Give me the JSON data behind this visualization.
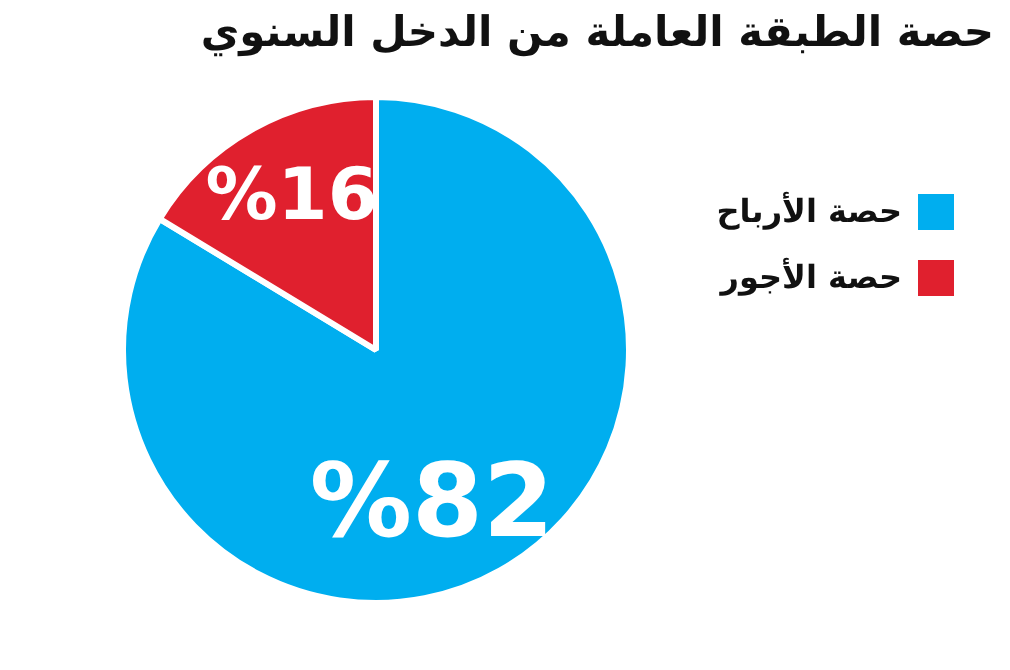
{
  "chart_data": {
    "type": "pie",
    "title": "حصة الطبقة العاملة من الدخل السنوي",
    "categories": [
      "حصة الأرباح",
      "حصة الأجور"
    ],
    "values": [
      82,
      16
    ],
    "colors": [
      "#00aeef",
      "#e0202e"
    ],
    "value_labels": [
      "%82",
      "%16"
    ],
    "legend": "right"
  }
}
